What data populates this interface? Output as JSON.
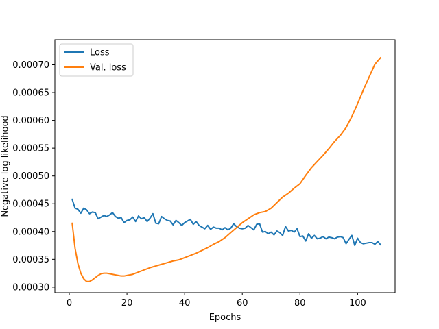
{
  "chart_data": {
    "type": "line",
    "title": "",
    "xlabel": "Epochs",
    "ylabel": "Negative log likelihood",
    "xlim": [
      -5,
      113
    ],
    "ylim": [
      0.00029,
      0.000745
    ],
    "xticks": [
      0,
      20,
      40,
      60,
      80,
      100
    ],
    "yticks": [
      0.0003,
      0.00035,
      0.0004,
      0.00045,
      0.0005,
      0.00055,
      0.0006,
      0.00065,
      0.0007
    ],
    "xtick_labels": [
      "0",
      "20",
      "40",
      "60",
      "80",
      "100"
    ],
    "ytick_labels": [
      "0.00030",
      "0.00035",
      "0.00040",
      "0.00045",
      "0.00050",
      "0.00055",
      "0.00060",
      "0.00065",
      "0.00070"
    ],
    "grid": false,
    "legend_position": "top-left",
    "series": [
      {
        "name": "Loss",
        "color": "#1f77b4",
        "x": [
          1,
          2,
          3,
          4,
          5,
          6,
          7,
          8,
          9,
          10,
          11,
          12,
          13,
          14,
          15,
          16,
          17,
          18,
          19,
          20,
          21,
          22,
          23,
          24,
          25,
          26,
          27,
          28,
          29,
          30,
          31,
          32,
          33,
          34,
          35,
          36,
          37,
          38,
          39,
          40,
          41,
          42,
          43,
          44,
          45,
          46,
          47,
          48,
          49,
          50,
          51,
          52,
          53,
          54,
          55,
          56,
          57,
          58,
          59,
          60,
          61,
          62,
          63,
          64,
          65,
          66,
          67,
          68,
          69,
          70,
          71,
          72,
          73,
          74,
          75,
          76,
          77,
          78,
          79,
          80,
          81,
          82,
          83,
          84,
          85,
          86,
          87,
          88,
          89,
          90,
          91,
          92,
          93,
          94,
          95,
          96,
          97,
          98,
          99,
          100,
          101,
          102,
          103,
          104,
          105,
          106,
          107,
          108
        ],
        "y": [
          0.000458,
          0.000442,
          0.00044,
          0.000433,
          0.000442,
          0.000439,
          0.000432,
          0.000435,
          0.000434,
          0.000423,
          0.000426,
          0.000429,
          0.000427,
          0.00043,
          0.000434,
          0.000427,
          0.000424,
          0.000425,
          0.000416,
          0.00042,
          0.000421,
          0.000426,
          0.000418,
          0.000428,
          0.000423,
          0.000425,
          0.000418,
          0.000424,
          0.000432,
          0.000415,
          0.000414,
          0.000427,
          0.000423,
          0.00042,
          0.000419,
          0.000412,
          0.00042,
          0.000416,
          0.000411,
          0.000416,
          0.000419,
          0.000422,
          0.000413,
          0.000418,
          0.000411,
          0.000408,
          0.000405,
          0.000411,
          0.000404,
          0.000408,
          0.000406,
          0.000406,
          0.000403,
          0.000407,
          0.000403,
          0.000406,
          0.000414,
          0.000409,
          0.000406,
          0.000405,
          0.000406,
          0.000411,
          0.000407,
          0.000403,
          0.000413,
          0.000414,
          0.000399,
          0.0004,
          0.000396,
          0.000399,
          0.000394,
          0.000401,
          0.000398,
          0.000393,
          0.000409,
          0.000401,
          0.000402,
          0.000399,
          0.000405,
          0.000391,
          0.000392,
          0.000383,
          0.000396,
          0.000388,
          0.000393,
          0.000387,
          0.000388,
          0.000391,
          0.000387,
          0.00039,
          0.000389,
          0.000387,
          0.00039,
          0.000391,
          0.000389,
          0.000378,
          0.000386,
          0.000393,
          0.000375,
          0.000388,
          0.00038,
          0.000378,
          0.000379,
          0.00038,
          0.00038,
          0.000377,
          0.000382,
          0.000376
        ]
      },
      {
        "name": "Val. loss",
        "color": "#ff7f0e",
        "x": [
          1,
          2,
          3,
          4,
          5,
          6,
          7,
          8,
          9,
          10,
          11,
          12,
          13,
          14,
          15,
          16,
          17,
          18,
          19,
          20,
          22,
          24,
          26,
          28,
          30,
          32,
          34,
          36,
          38,
          40,
          42,
          44,
          46,
          48,
          50,
          52,
          54,
          56,
          58,
          60,
          62,
          64,
          66,
          68,
          70,
          72,
          74,
          76,
          78,
          80,
          82,
          84,
          86,
          88,
          90,
          92,
          94,
          96,
          98,
          100,
          102,
          104,
          106,
          108
        ],
        "y": [
          0.000415,
          0.00037,
          0.000342,
          0.000325,
          0.000315,
          0.00031,
          0.00031,
          0.000313,
          0.000317,
          0.000321,
          0.000324,
          0.000325,
          0.000325,
          0.000324,
          0.000323,
          0.000322,
          0.000321,
          0.00032,
          0.00032,
          0.000321,
          0.000323,
          0.000327,
          0.000331,
          0.000335,
          0.000338,
          0.000341,
          0.000344,
          0.000347,
          0.000349,
          0.000353,
          0.000357,
          0.000361,
          0.000366,
          0.000371,
          0.000377,
          0.000382,
          0.000389,
          0.000398,
          0.000407,
          0.000416,
          0.000423,
          0.00043,
          0.000434,
          0.000436,
          0.000442,
          0.000452,
          0.000462,
          0.000469,
          0.000478,
          0.000486,
          0.000501,
          0.000515,
          0.000526,
          0.000537,
          0.000549,
          0.000562,
          0.000573,
          0.000587,
          0.000607,
          0.00063,
          0.000655,
          0.000678,
          0.000701,
          0.000713
        ]
      }
    ]
  }
}
